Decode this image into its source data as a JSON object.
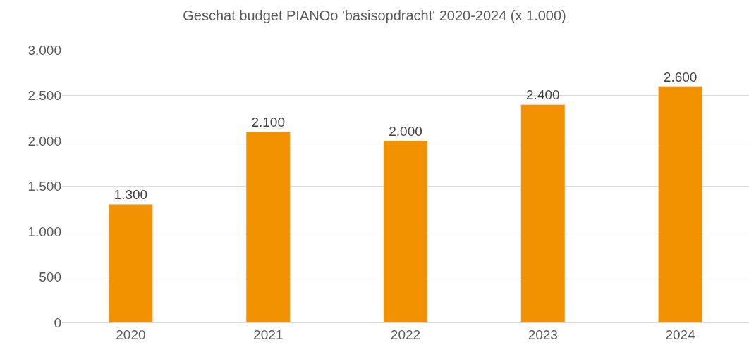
{
  "chart_data": {
    "type": "bar",
    "title": "Geschat budget PIANOo 'basisopdracht' 2020-2024 (x 1.000)",
    "categories": [
      "2020",
      "2021",
      "2022",
      "2023",
      "2024"
    ],
    "values": [
      1300,
      2100,
      2000,
      2400,
      2600
    ],
    "value_labels": [
      "1.300",
      "2.100",
      "2.000",
      "2.400",
      "2.600"
    ],
    "color": "#f39200",
    "ylim": [
      0,
      3000
    ],
    "yticks": [
      {
        "value": 0,
        "label": "0"
      },
      {
        "value": 500,
        "label": "500"
      },
      {
        "value": 1000,
        "label": "1.000"
      },
      {
        "value": 1500,
        "label": "1.500"
      },
      {
        "value": 2000,
        "label": "2.000"
      },
      {
        "value": 2500,
        "label": "2.500"
      },
      {
        "value": 3000,
        "label": "3.000"
      }
    ],
    "grid": "y",
    "legend": false
  }
}
